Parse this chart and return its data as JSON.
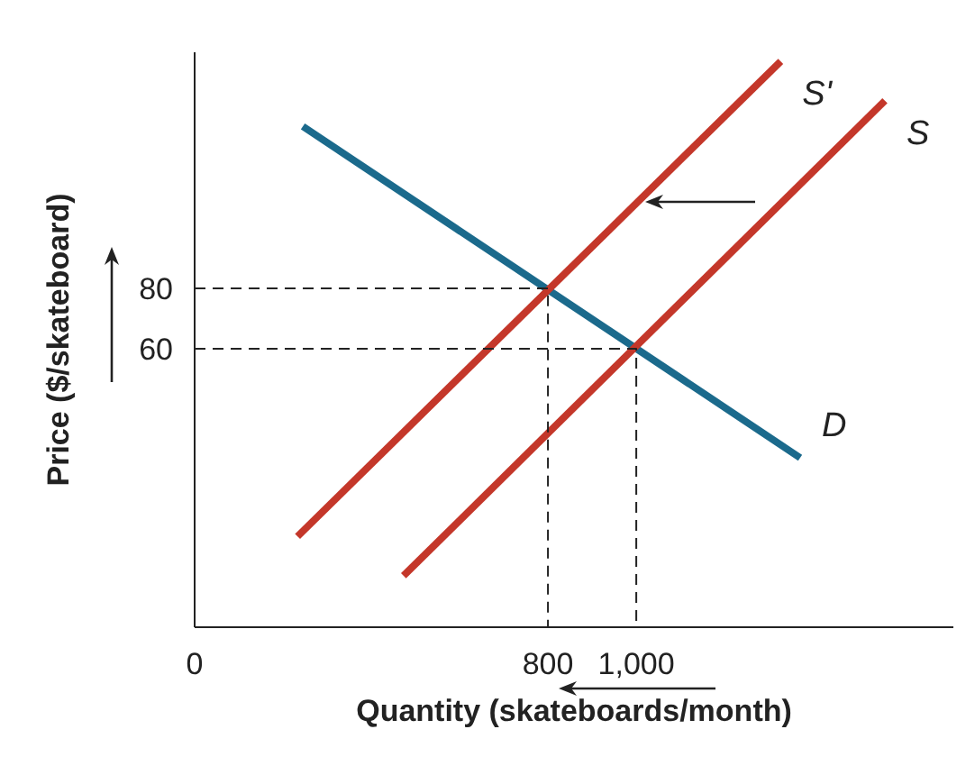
{
  "chart_data": {
    "type": "line",
    "xlabel": "Quantity (skateboards/month)",
    "ylabel": "Price ($/skateboard)",
    "xlim": [
      0,
      1718
    ],
    "ylim": [
      -32,
      158
    ],
    "xticks": [
      0,
      800,
      {
        "value": 1000,
        "label": "1,000"
      }
    ],
    "yticks": [
      60,
      80
    ],
    "marker": "none",
    "grid": false,
    "legend": false,
    "series": [
      {
        "name": "D",
        "color": "#1b6a8c",
        "x": [
          245,
          1371
        ],
        "values": [
          133.5,
          24
        ]
      },
      {
        "name": "S'",
        "color": "#c4372a",
        "x": [
          233,
          1327
        ],
        "values": [
          -2,
          155
        ]
      },
      {
        "name": "S",
        "color": "#c4372a",
        "x": [
          473,
          1563
        ],
        "values": [
          -15,
          142
        ]
      },
      {
        "color": "#222222",
        "line_style": "dashed",
        "x": [
          0,
          800,
          800
        ],
        "values": [
          80,
          80,
          -32
        ]
      },
      {
        "color": "#222222",
        "line_style": "dashed",
        "x": [
          0,
          1000,
          1000
        ],
        "values": [
          60,
          60,
          -32
        ]
      }
    ]
  }
}
